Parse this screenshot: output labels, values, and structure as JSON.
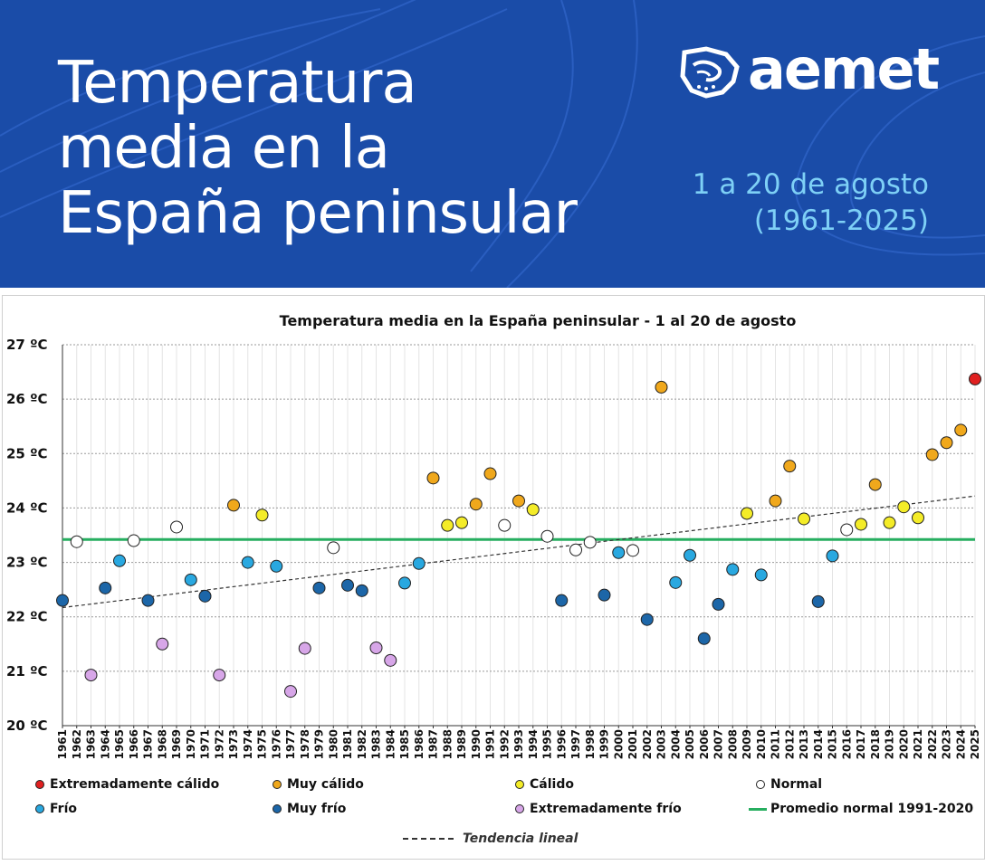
{
  "banner": {
    "title_lines": [
      "Temperatura",
      "media en la",
      "España peninsular"
    ],
    "logo_text": "aemet",
    "period_line1": "1 a 20 de agosto",
    "period_line2": "(1961-2025)",
    "background_color": "#1a4ca8",
    "subtitle_color": "#7ed0f6"
  },
  "chart_data": {
    "type": "scatter",
    "title": "Temperatura media en la España peninsular - 1 al 20 de agosto",
    "ylabel": "",
    "xlabel": "",
    "ylim": [
      20,
      27
    ],
    "ytick_labels": [
      "20 ºC",
      "21 ºC",
      "22 ºC",
      "23 ºC",
      "24 ºC",
      "25 ºC",
      "26 ºC",
      "27 ºC"
    ],
    "grid": true,
    "categories": {
      "EC": {
        "label": "Extremadamente cálido",
        "color": "#e02020"
      },
      "MC": {
        "label": "Muy cálido",
        "color": "#f0a81c"
      },
      "C": {
        "label": "Cálido",
        "color": "#f4ec28"
      },
      "N": {
        "label": "Normal",
        "color": "#ffffff"
      },
      "F": {
        "label": "Frío",
        "color": "#29a8e0"
      },
      "MF": {
        "label": "Muy frío",
        "color": "#1c66a8"
      },
      "EF": {
        "label": "Extremadamente frío",
        "color": "#d7a6e8"
      }
    },
    "points": [
      {
        "year": 1961,
        "value": 22.3,
        "cat": "MF"
      },
      {
        "year": 1962,
        "value": 23.38,
        "cat": "N"
      },
      {
        "year": 1963,
        "value": 20.93,
        "cat": "EF"
      },
      {
        "year": 1964,
        "value": 22.53,
        "cat": "MF"
      },
      {
        "year": 1965,
        "value": 23.03,
        "cat": "F"
      },
      {
        "year": 1966,
        "value": 23.4,
        "cat": "N"
      },
      {
        "year": 1967,
        "value": 22.3,
        "cat": "MF"
      },
      {
        "year": 1968,
        "value": 21.5,
        "cat": "EF"
      },
      {
        "year": 1969,
        "value": 23.65,
        "cat": "N"
      },
      {
        "year": 1970,
        "value": 22.68,
        "cat": "F"
      },
      {
        "year": 1971,
        "value": 22.38,
        "cat": "MF"
      },
      {
        "year": 1972,
        "value": 20.93,
        "cat": "EF"
      },
      {
        "year": 1973,
        "value": 24.05,
        "cat": "MC"
      },
      {
        "year": 1974,
        "value": 23.0,
        "cat": "F"
      },
      {
        "year": 1975,
        "value": 23.87,
        "cat": "C"
      },
      {
        "year": 1976,
        "value": 22.93,
        "cat": "F"
      },
      {
        "year": 1977,
        "value": 20.63,
        "cat": "EF"
      },
      {
        "year": 1978,
        "value": 21.42,
        "cat": "EF"
      },
      {
        "year": 1979,
        "value": 22.53,
        "cat": "MF"
      },
      {
        "year": 1980,
        "value": 23.27,
        "cat": "N"
      },
      {
        "year": 1981,
        "value": 22.58,
        "cat": "MF"
      },
      {
        "year": 1982,
        "value": 22.48,
        "cat": "MF"
      },
      {
        "year": 1983,
        "value": 21.43,
        "cat": "EF"
      },
      {
        "year": 1984,
        "value": 21.2,
        "cat": "EF"
      },
      {
        "year": 1985,
        "value": 22.62,
        "cat": "F"
      },
      {
        "year": 1986,
        "value": 22.98,
        "cat": "F"
      },
      {
        "year": 1987,
        "value": 24.55,
        "cat": "MC"
      },
      {
        "year": 1988,
        "value": 23.68,
        "cat": "C"
      },
      {
        "year": 1989,
        "value": 23.73,
        "cat": "C"
      },
      {
        "year": 1990,
        "value": 24.07,
        "cat": "MC"
      },
      {
        "year": 1991,
        "value": 24.63,
        "cat": "MC"
      },
      {
        "year": 1992,
        "value": 23.68,
        "cat": "N"
      },
      {
        "year": 1993,
        "value": 24.13,
        "cat": "MC"
      },
      {
        "year": 1994,
        "value": 23.97,
        "cat": "C"
      },
      {
        "year": 1995,
        "value": 23.48,
        "cat": "N"
      },
      {
        "year": 1996,
        "value": 22.3,
        "cat": "MF"
      },
      {
        "year": 1997,
        "value": 23.23,
        "cat": "N"
      },
      {
        "year": 1998,
        "value": 23.37,
        "cat": "N"
      },
      {
        "year": 1999,
        "value": 22.4,
        "cat": "MF"
      },
      {
        "year": 2000,
        "value": 23.18,
        "cat": "F"
      },
      {
        "year": 2001,
        "value": 23.22,
        "cat": "N"
      },
      {
        "year": 2002,
        "value": 21.95,
        "cat": "MF"
      },
      {
        "year": 2003,
        "value": 26.22,
        "cat": "MC"
      },
      {
        "year": 2004,
        "value": 22.63,
        "cat": "F"
      },
      {
        "year": 2005,
        "value": 23.13,
        "cat": "F"
      },
      {
        "year": 2006,
        "value": 21.6,
        "cat": "MF"
      },
      {
        "year": 2007,
        "value": 22.23,
        "cat": "MF"
      },
      {
        "year": 2008,
        "value": 22.87,
        "cat": "F"
      },
      {
        "year": 2009,
        "value": 23.9,
        "cat": "C"
      },
      {
        "year": 2010,
        "value": 22.77,
        "cat": "F"
      },
      {
        "year": 2011,
        "value": 24.13,
        "cat": "MC"
      },
      {
        "year": 2012,
        "value": 24.77,
        "cat": "MC"
      },
      {
        "year": 2013,
        "value": 23.8,
        "cat": "C"
      },
      {
        "year": 2014,
        "value": 22.28,
        "cat": "MF"
      },
      {
        "year": 2015,
        "value": 23.12,
        "cat": "F"
      },
      {
        "year": 2016,
        "value": 23.6,
        "cat": "N"
      },
      {
        "year": 2017,
        "value": 23.7,
        "cat": "C"
      },
      {
        "year": 2018,
        "value": 24.43,
        "cat": "MC"
      },
      {
        "year": 2019,
        "value": 23.73,
        "cat": "C"
      },
      {
        "year": 2020,
        "value": 24.02,
        "cat": "C"
      },
      {
        "year": 2021,
        "value": 23.82,
        "cat": "C"
      },
      {
        "year": 2022,
        "value": 24.98,
        "cat": "MC"
      },
      {
        "year": 2023,
        "value": 25.2,
        "cat": "MC"
      },
      {
        "year": 2024,
        "value": 25.43,
        "cat": "MC"
      },
      {
        "year": 2025,
        "value": 26.37,
        "cat": "EC"
      }
    ],
    "normal_average": {
      "label": "Promedio normal 1991-2020",
      "value": 23.42,
      "color": "#27ae60"
    },
    "trend": {
      "label": "Tendencia lineal",
      "start": {
        "year": 1961,
        "value": 22.17
      },
      "end": {
        "year": 2025,
        "value": 24.22
      }
    },
    "legend": {
      "extremadamente_calido": "Extremadamente cálido",
      "muy_calido": "Muy cálido",
      "calido": "Cálido",
      "normal": "Normal",
      "frio": "Frío",
      "muy_frio": "Muy frío",
      "extremadamente_frio": "Extremadamente frío",
      "promedio": "Promedio normal 1991-2020",
      "tendencia": "Tendencia lineal"
    }
  }
}
